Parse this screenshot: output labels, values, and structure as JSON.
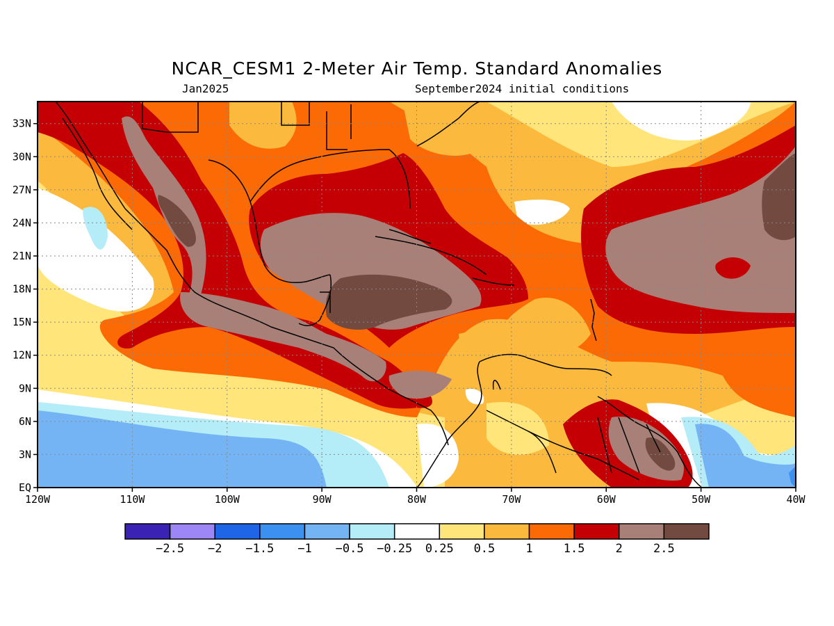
{
  "title": "NCAR_CESM1 2-Meter Air Temp. Standard Anomalies",
  "valid_time": "Jan2025",
  "initial_conditions": "September2024 initial conditions",
  "map": {
    "lon_range": [
      -120,
      -40
    ],
    "lat_range": [
      0,
      35
    ],
    "lon_ticks": [
      {
        "v": -120,
        "label": "120W"
      },
      {
        "v": -110,
        "label": "110W"
      },
      {
        "v": -100,
        "label": "100W"
      },
      {
        "v": -90,
        "label": "90W"
      },
      {
        "v": -80,
        "label": "80W"
      },
      {
        "v": -70,
        "label": "70W"
      },
      {
        "v": -60,
        "label": "60W"
      },
      {
        "v": -50,
        "label": "50W"
      },
      {
        "v": -40,
        "label": "40W"
      }
    ],
    "lat_ticks": [
      {
        "v": 0,
        "label": "EQ"
      },
      {
        "v": 3,
        "label": "3N"
      },
      {
        "v": 6,
        "label": "6N"
      },
      {
        "v": 9,
        "label": "9N"
      },
      {
        "v": 12,
        "label": "12N"
      },
      {
        "v": 15,
        "label": "15N"
      },
      {
        "v": 18,
        "label": "18N"
      },
      {
        "v": 21,
        "label": "21N"
      },
      {
        "v": 24,
        "label": "24N"
      },
      {
        "v": 27,
        "label": "27N"
      },
      {
        "v": 30,
        "label": "30N"
      },
      {
        "v": 33,
        "label": "33N"
      }
    ],
    "gridlines": "dotted"
  },
  "colorbar": {
    "colors": [
      "#3a22b4",
      "#9d86f5",
      "#1f66e6",
      "#3c91f0",
      "#74b4f5",
      "#b4ecf7",
      "#ffffff",
      "#ffe57a",
      "#fbba3e",
      "#fb6a05",
      "#c40004",
      "#a88078",
      "#734a40"
    ],
    "labels": [
      "−2.5",
      "−2",
      "−1.5",
      "−1",
      "−0.5",
      "−0.25",
      "0.25",
      "0.5",
      "1",
      "1.5",
      "2",
      "2.5"
    ]
  },
  "land_color": "#000000"
}
